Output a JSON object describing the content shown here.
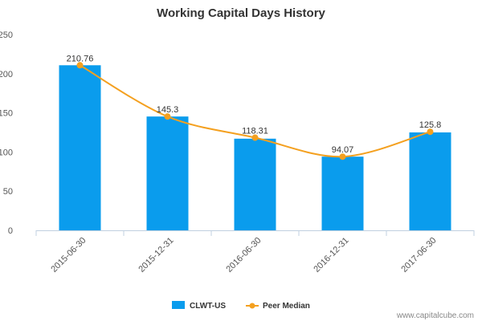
{
  "chart_data": {
    "type": "bar",
    "title": "Working Capital Days History",
    "categories": [
      "2015-06-30",
      "2015-12-31",
      "2016-06-30",
      "2016-12-31",
      "2017-06-30"
    ],
    "series": [
      {
        "name": "CLWT-US",
        "type": "bar",
        "color": "#0a9ced",
        "values": [
          210.76,
          145.3,
          117.0,
          94.07,
          125.0
        ]
      },
      {
        "name": "Peer Median",
        "type": "line",
        "color": "#f4a01f",
        "values": [
          210.76,
          145.3,
          118.31,
          94.07,
          125.8
        ]
      }
    ],
    "data_labels": [
      "210.76",
      "145.3",
      "118.31",
      "94.07",
      "125.8"
    ],
    "yticks": [
      "0",
      "50",
      "100",
      "150",
      "200",
      "250"
    ],
    "ylim": [
      0,
      250
    ],
    "grid": false,
    "legend_position": "bottom-center"
  },
  "watermark": "www.capitalcube.com"
}
